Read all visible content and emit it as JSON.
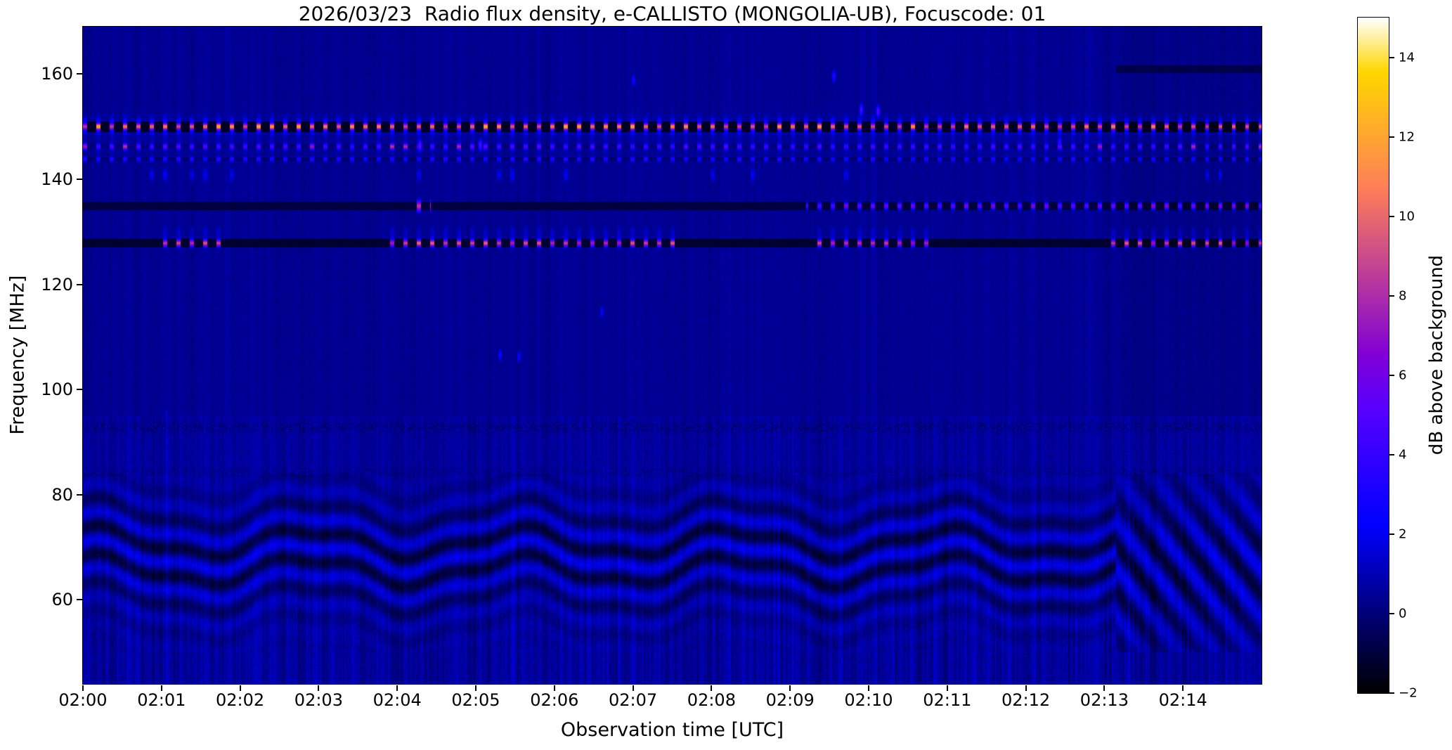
{
  "chart_data": {
    "type": "heatmap",
    "title": "2026/03/23  Radio flux density, e-CALLISTO (MONGOLIA-UB), Focuscode: 01",
    "xlabel": "Observation time [UTC]",
    "ylabel": "Frequency [MHz]",
    "x_ticks": [
      "02:00",
      "02:01",
      "02:02",
      "02:03",
      "02:04",
      "02:05",
      "02:06",
      "02:07",
      "02:08",
      "02:09",
      "02:10",
      "02:11",
      "02:12",
      "02:13",
      "02:14"
    ],
    "x_range_minutes": [
      0,
      15
    ],
    "y_ticks": [
      60,
      80,
      100,
      120,
      140,
      160
    ],
    "y_range_mhz": [
      44,
      169
    ],
    "grid": false,
    "colorbar": {
      "label": "dB above background",
      "tick_values": [
        -2,
        0,
        2,
        4,
        6,
        8,
        10,
        12,
        14
      ],
      "tick_labels": [
        "−2",
        "0",
        "2",
        "4",
        "6",
        "8",
        "10",
        "12",
        "14"
      ],
      "range_db": [
        -2,
        15
      ],
      "colormap": "gnuplot2 (black-blue-violet-pink-orange-yellow-white)"
    },
    "background_level_db": 0.5,
    "features": {
      "dash_period_s": 10.2,
      "dash_duty": 0.3,
      "carrier_150": {
        "freq_mhz": 150.0,
        "line_db": -1.6,
        "dash_db_min": 8.2,
        "dash_db_max": 12.0,
        "glow_db": 3.0,
        "t0_min": 0,
        "t1_min": 15
      },
      "row_146": {
        "freq_mhz": 146.2,
        "dash_db": 3.2,
        "accent_db": 6.4
      },
      "row_144": {
        "freq_mhz": 143.8,
        "dash_db": 2.6
      },
      "streak_141": {
        "freq_mhz": 140.8,
        "db": 1.6
      },
      "line_135": {
        "freq_mhz": 134.9,
        "line_db": -1.1,
        "burst": {
          "t_min": 4.17,
          "t_end_min": 4.43,
          "db": 8.2
        },
        "dash_train": {
          "t0_min": 9.2,
          "t1_min": 15,
          "db_min": 4.2,
          "db_max": 6.8
        }
      },
      "line_128": {
        "freq_mhz": 127.8,
        "line_db": -1.4,
        "dash_db_min": 6.8,
        "dash_db_max": 9.8,
        "clusters_min": [
          [
            1.0,
            1.85
          ],
          [
            3.85,
            7.6
          ],
          [
            9.3,
            10.8
          ],
          [
            13.0,
            15.0
          ]
        ]
      },
      "dark_band_161": {
        "freq_lo": 160.2,
        "freq_hi": 161.7,
        "t0_min": 13.15,
        "db": -0.8
      },
      "speckle_row_93": {
        "freq_mhz": 92.8,
        "half_width_mhz": 1.3
      },
      "speckle_row_84": {
        "freq_mhz": 84.3,
        "half_width_mhz": 0.9
      },
      "noise_region_top_mhz": 95,
      "wavy_band": {
        "center_mhz": 68.5,
        "span_mhz": [
          50,
          84
        ],
        "wobble_amp_mhz": 2.4,
        "wobble_period_min": 2.7,
        "ripple_wavelength_mhz": 5.4,
        "ripple_db": 1.4
      },
      "right_section": {
        "t0_min": 13.15,
        "diag_stripe_span_mhz": [
          48,
          84
        ],
        "dim_db": -0.2
      },
      "thin_vertical_line": {
        "t_min": 1.06,
        "below_mhz": 96,
        "db": 1.1
      },
      "blobs": [
        {
          "t_min": 9.9,
          "f_mhz": 153.2,
          "db": 4.5
        },
        {
          "t_min": 10.12,
          "f_mhz": 153.0,
          "db": 4.8
        },
        {
          "t_min": 9.55,
          "f_mhz": 159.6,
          "db": 3.2
        },
        {
          "t_min": 4.28,
          "f_mhz": 146.4,
          "db": 5.5
        },
        {
          "t_min": 5.05,
          "f_mhz": 146.6,
          "db": 4.8
        },
        {
          "t_min": 12.42,
          "f_mhz": 146.9,
          "db": 3.6
        },
        {
          "t_min": 5.3,
          "f_mhz": 106.6,
          "db": 2.3
        },
        {
          "t_min": 5.55,
          "f_mhz": 106.3,
          "db": 2.1
        },
        {
          "t_min": 6.6,
          "f_mhz": 114.8,
          "db": 1.9
        },
        {
          "t_min": 7.0,
          "f_mhz": 158.8,
          "db": 2.4
        }
      ]
    }
  }
}
